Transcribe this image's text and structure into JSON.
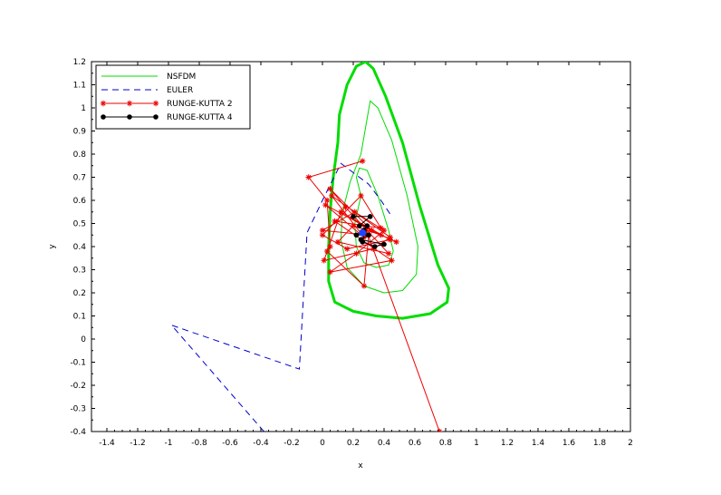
{
  "chart_data": {
    "type": "line",
    "title": "",
    "xlabel": "x",
    "ylabel": "y",
    "xlim": [
      -1.5,
      2
    ],
    "ylim": [
      -0.4,
      1.2
    ],
    "xticks": [
      "-1.4",
      "-1.2",
      "-1",
      "-0.8",
      "-0.6",
      "-0.4",
      "-0.2",
      "0",
      "0.2",
      "0.4",
      "0.6",
      "0.8",
      "1",
      "1.2",
      "1.4",
      "1.6",
      "1.8",
      "2"
    ],
    "yticks": [
      "-0.4",
      "-0.3",
      "-0.2",
      "-0.1",
      "0",
      "0.1",
      "0.2",
      "0.3",
      "0.4",
      "0.5",
      "0.6",
      "0.7",
      "0.8",
      "0.9",
      "1",
      "1.1",
      "1.2"
    ],
    "grid": false,
    "legend_position": "top-left",
    "series": [
      {
        "name": "NSFDM",
        "color": "#00dd00",
        "style": "solid",
        "marker": "none",
        "loops": [
          [
            [
              0.25,
              0.62
            ],
            [
              0.22,
              0.7
            ],
            [
              0.24,
              0.74
            ],
            [
              0.29,
              0.73
            ],
            [
              0.36,
              0.62
            ],
            [
              0.43,
              0.47
            ],
            [
              0.46,
              0.38
            ],
            [
              0.43,
              0.32
            ],
            [
              0.35,
              0.31
            ],
            [
              0.27,
              0.33
            ],
            [
              0.22,
              0.4
            ],
            [
              0.21,
              0.5
            ],
            [
              0.25,
              0.62
            ]
          ],
          [
            [
              0.25,
              0.8
            ],
            [
              0.31,
              1.03
            ],
            [
              0.36,
              1.0
            ],
            [
              0.45,
              0.86
            ],
            [
              0.55,
              0.62
            ],
            [
              0.62,
              0.4
            ],
            [
              0.61,
              0.28
            ],
            [
              0.52,
              0.21
            ],
            [
              0.4,
              0.2
            ],
            [
              0.27,
              0.23
            ],
            [
              0.16,
              0.31
            ],
            [
              0.12,
              0.43
            ],
            [
              0.13,
              0.55
            ],
            [
              0.18,
              0.68
            ],
            [
              0.25,
              0.8
            ]
          ],
          [
            [
              0.1,
              0.85
            ],
            [
              0.11,
              0.97
            ],
            [
              0.16,
              1.1
            ],
            [
              0.22,
              1.18
            ],
            [
              0.28,
              1.2
            ],
            [
              0.33,
              1.17
            ],
            [
              0.41,
              1.05
            ],
            [
              0.52,
              0.85
            ],
            [
              0.63,
              0.58
            ],
            [
              0.75,
              0.32
            ],
            [
              0.82,
              0.22
            ],
            [
              0.81,
              0.16
            ],
            [
              0.7,
              0.11
            ],
            [
              0.52,
              0.09
            ],
            [
              0.35,
              0.1
            ],
            [
              0.2,
              0.12
            ],
            [
              0.08,
              0.16
            ],
            [
              0.04,
              0.25
            ],
            [
              0.04,
              0.4
            ],
            [
              0.05,
              0.55
            ],
            [
              0.07,
              0.7
            ],
            [
              0.1,
              0.85
            ]
          ]
        ]
      },
      {
        "name": "EULER",
        "color": "#0000cc",
        "style": "dashed",
        "marker": "none",
        "points": [
          [
            -0.38,
            -0.4
          ],
          [
            -0.98,
            0.06
          ],
          [
            -0.15,
            -0.13
          ],
          [
            -0.1,
            0.46
          ],
          [
            0.0,
            0.6
          ],
          [
            0.12,
            0.76
          ],
          [
            0.3,
            0.67
          ],
          [
            0.38,
            0.6
          ],
          [
            0.45,
            0.53
          ]
        ]
      },
      {
        "name": "RUNGE-KUTTA 2",
        "color": "#ee0000",
        "style": "solid",
        "marker": "star",
        "points": [
          [
            0.26,
            0.77
          ],
          [
            -0.09,
            0.7
          ],
          [
            0.03,
            0.6
          ],
          [
            0.05,
            0.4
          ],
          [
            0.03,
            0.38
          ],
          [
            0.27,
            0.23
          ],
          [
            0.3,
            0.45
          ],
          [
            0.0,
            0.47
          ],
          [
            0.21,
            0.55
          ],
          [
            0.4,
            0.47
          ],
          [
            0.22,
            0.37
          ],
          [
            0.05,
            0.29
          ],
          [
            0.45,
            0.34
          ],
          [
            0.08,
            0.51
          ],
          [
            0.38,
            0.48
          ],
          [
            0.25,
            0.62
          ],
          [
            0.0,
            0.45
          ],
          [
            0.16,
            0.39
          ],
          [
            0.44,
            0.43
          ],
          [
            0.12,
            0.55
          ],
          [
            0.01,
            0.34
          ],
          [
            0.33,
            0.39
          ],
          [
            0.44,
            0.44
          ],
          [
            0.06,
            0.62
          ],
          [
            0.27,
            0.44
          ],
          [
            0.02,
            0.58
          ],
          [
            0.38,
            0.45
          ],
          [
            0.2,
            0.49
          ],
          [
            0.1,
            0.42
          ],
          [
            0.43,
            0.37
          ],
          [
            0.15,
            0.57
          ],
          [
            0.05,
            0.65
          ],
          [
            0.32,
            0.47
          ],
          [
            0.48,
            0.42
          ],
          [
            0.28,
            0.48
          ],
          [
            0.76,
            -0.4
          ]
        ]
      },
      {
        "name": "RUNGE-KUTTA 4",
        "color": "#000000",
        "style": "solid",
        "marker": "circle",
        "points": [
          [
            0.2,
            0.53
          ],
          [
            0.31,
            0.53
          ],
          [
            0.24,
            0.49
          ],
          [
            0.29,
            0.49
          ],
          [
            0.27,
            0.47
          ],
          [
            0.22,
            0.45
          ],
          [
            0.3,
            0.45
          ],
          [
            0.25,
            0.43
          ],
          [
            0.4,
            0.41
          ],
          [
            0.34,
            0.4
          ],
          [
            0.26,
            0.42
          ],
          [
            0.27,
            0.46
          ]
        ]
      }
    ],
    "highlight_point": {
      "x": 0.26,
      "y": 0.46,
      "color": "#2244ff"
    }
  }
}
